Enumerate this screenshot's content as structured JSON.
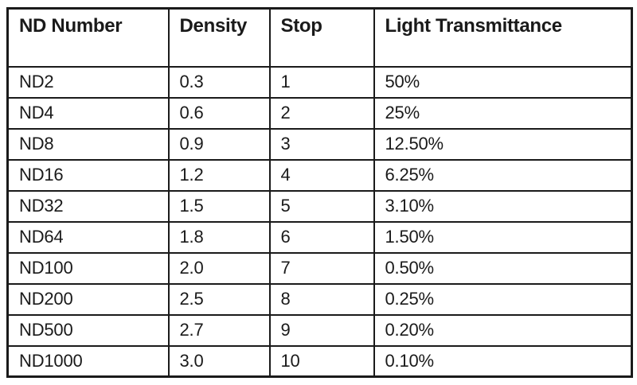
{
  "colors": {
    "background": "#ffffff",
    "border": "#1a1a1a",
    "text": "#1a1a1a"
  },
  "table": {
    "headers": [
      "ND Number",
      "Density",
      "Stop",
      "Light Transmittance"
    ],
    "rows": [
      {
        "nd_number": "ND2",
        "density": "0.3",
        "stop": "1",
        "transmittance": "50%"
      },
      {
        "nd_number": "ND4",
        "density": "0.6",
        "stop": "2",
        "transmittance": "25%"
      },
      {
        "nd_number": "ND8",
        "density": "0.9",
        "stop": "3",
        "transmittance": "12.50%"
      },
      {
        "nd_number": "ND16",
        "density": "1.2",
        "stop": "4",
        "transmittance": "6.25%"
      },
      {
        "nd_number": "ND32",
        "density": "1.5",
        "stop": "5",
        "transmittance": "3.10%"
      },
      {
        "nd_number": "ND64",
        "density": "1.8",
        "stop": "6",
        "transmittance": "1.50%"
      },
      {
        "nd_number": "ND100",
        "density": "2.0",
        "stop": "7",
        "transmittance": "0.50%"
      },
      {
        "nd_number": "ND200",
        "density": "2.5",
        "stop": "8",
        "transmittance": "0.25%"
      },
      {
        "nd_number": "ND500",
        "density": "2.7",
        "stop": "9",
        "transmittance": "0.20%"
      },
      {
        "nd_number": "ND1000",
        "density": "3.0",
        "stop": "10",
        "transmittance": "0.10%"
      }
    ]
  },
  "chart_data": {
    "type": "table",
    "columns": [
      "ND Number",
      "Density",
      "Stop",
      "Light Transmittance"
    ],
    "rows": [
      [
        "ND2",
        0.3,
        1,
        "50%"
      ],
      [
        "ND4",
        0.6,
        2,
        "25%"
      ],
      [
        "ND8",
        0.9,
        3,
        "12.50%"
      ],
      [
        "ND16",
        1.2,
        4,
        "6.25%"
      ],
      [
        "ND32",
        1.5,
        5,
        "3.10%"
      ],
      [
        "ND64",
        1.8,
        6,
        "1.50%"
      ],
      [
        "ND100",
        2.0,
        7,
        "0.50%"
      ],
      [
        "ND200",
        2.5,
        8,
        "0.25%"
      ],
      [
        "ND500",
        2.7,
        9,
        "0.20%"
      ],
      [
        "ND1000",
        3.0,
        10,
        "0.10%"
      ]
    ]
  }
}
